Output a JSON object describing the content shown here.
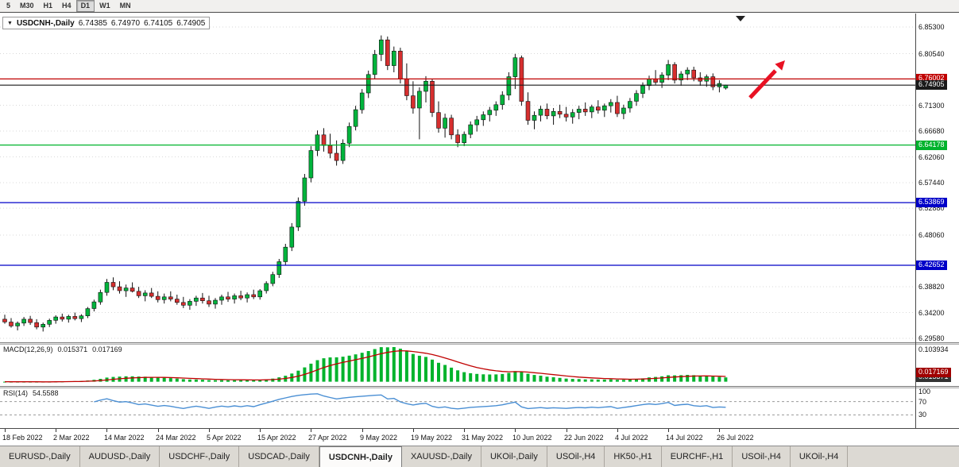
{
  "toolbar": {
    "timeframes": [
      {
        "label": "5",
        "active": false
      },
      {
        "label": "M30",
        "active": false
      },
      {
        "label": "H1",
        "active": false
      },
      {
        "label": "H4",
        "active": false
      },
      {
        "label": "D1",
        "active": true
      },
      {
        "label": "W1",
        "active": false
      },
      {
        "label": "MN",
        "active": false
      }
    ]
  },
  "chart": {
    "title": "USDCNH-,Daily",
    "ohlc": {
      "open": "6.74385",
      "high": "6.74970",
      "low": "6.74105",
      "close": "6.74905"
    },
    "scale": {
      "max": 6.8772,
      "min": 6.2887
    },
    "axis_labels": [
      "6.85300",
      "6.80540",
      "6.71300",
      "6.66680",
      "6.62060",
      "6.57440",
      "6.52880",
      "6.48060",
      "6.38820",
      "6.34200",
      "6.29580"
    ],
    "hlines": [
      {
        "label": "6.76002",
        "value": 6.76002,
        "color": "#c00000"
      },
      {
        "label": "6.74905",
        "value": 6.74905,
        "color": "#1a1a1a"
      },
      {
        "label": "6.64178",
        "value": 6.64178,
        "color": "#00b32c"
      },
      {
        "label": "6.53869",
        "value": 6.53869,
        "color": "#0000c8"
      },
      {
        "label": "6.42652",
        "value": 6.42652,
        "color": "#0000c8"
      }
    ],
    "colors": {
      "up": "#00b43c",
      "down": "#d62f2f",
      "outline": "#111111",
      "arrow": "#e81123"
    },
    "dates": [
      {
        "label": "18 Feb 2022",
        "bar": 0
      },
      {
        "label": "2 Mar 2022",
        "bar": 8
      },
      {
        "label": "14 Mar 2022",
        "bar": 16
      },
      {
        "label": "24 Mar 2022",
        "bar": 24
      },
      {
        "label": "5 Apr 2022",
        "bar": 32
      },
      {
        "label": "15 Apr 2022",
        "bar": 40
      },
      {
        "label": "27 Apr 2022",
        "bar": 48
      },
      {
        "label": "9 May 2022",
        "bar": 56
      },
      {
        "label": "19 May 2022",
        "bar": 64
      },
      {
        "label": "31 May 2022",
        "bar": 72
      },
      {
        "label": "10 Jun 2022",
        "bar": 80
      },
      {
        "label": "22 Jun 2022",
        "bar": 88
      },
      {
        "label": "4 Jul 2022",
        "bar": 96
      },
      {
        "label": "14 Jul 2022",
        "bar": 104
      },
      {
        "label": "26 Jul 2022",
        "bar": 112
      }
    ],
    "candles": [
      [
        6.33,
        6.338,
        6.322,
        6.325
      ],
      [
        6.325,
        6.332,
        6.315,
        6.318
      ],
      [
        6.318,
        6.326,
        6.31,
        6.323
      ],
      [
        6.323,
        6.334,
        6.318,
        6.33
      ],
      [
        6.33,
        6.336,
        6.32,
        6.324
      ],
      [
        6.324,
        6.33,
        6.312,
        6.316
      ],
      [
        6.316,
        6.324,
        6.308,
        6.321
      ],
      [
        6.321,
        6.331,
        6.316,
        6.328
      ],
      [
        6.328,
        6.337,
        6.322,
        6.334
      ],
      [
        6.334,
        6.34,
        6.326,
        6.33
      ],
      [
        6.33,
        6.338,
        6.324,
        6.335
      ],
      [
        6.335,
        6.342,
        6.328,
        6.331
      ],
      [
        6.331,
        6.339,
        6.325,
        6.336
      ],
      [
        6.336,
        6.352,
        6.332,
        6.349
      ],
      [
        6.349,
        6.365,
        6.344,
        6.361
      ],
      [
        6.361,
        6.383,
        6.356,
        6.378
      ],
      [
        6.378,
        6.402,
        6.372,
        6.396
      ],
      [
        6.396,
        6.405,
        6.382,
        6.388
      ],
      [
        6.388,
        6.398,
        6.376,
        6.381
      ],
      [
        6.381,
        6.392,
        6.37,
        6.386
      ],
      [
        6.386,
        6.396,
        6.378,
        6.38
      ],
      [
        6.38,
        6.388,
        6.368,
        6.372
      ],
      [
        6.372,
        6.382,
        6.362,
        6.377
      ],
      [
        6.377,
        6.386,
        6.368,
        6.371
      ],
      [
        6.371,
        6.38,
        6.36,
        6.365
      ],
      [
        6.365,
        6.376,
        6.358,
        6.37
      ],
      [
        6.37,
        6.38,
        6.362,
        6.366
      ],
      [
        6.366,
        6.374,
        6.356,
        6.36
      ],
      [
        6.36,
        6.37,
        6.35,
        6.355
      ],
      [
        6.355,
        6.366,
        6.347,
        6.362
      ],
      [
        6.362,
        6.372,
        6.354,
        6.368
      ],
      [
        6.368,
        6.377,
        6.358,
        6.363
      ],
      [
        6.363,
        6.372,
        6.352,
        6.357
      ],
      [
        6.357,
        6.368,
        6.349,
        6.364
      ],
      [
        6.364,
        6.374,
        6.356,
        6.37
      ],
      [
        6.37,
        6.379,
        6.361,
        6.366
      ],
      [
        6.366,
        6.376,
        6.358,
        6.372
      ],
      [
        6.372,
        6.381,
        6.364,
        6.368
      ],
      [
        6.368,
        6.378,
        6.36,
        6.374
      ],
      [
        6.374,
        6.383,
        6.366,
        6.37
      ],
      [
        6.37,
        6.384,
        6.365,
        6.381
      ],
      [
        6.381,
        6.398,
        6.376,
        6.394
      ],
      [
        6.394,
        6.415,
        6.389,
        6.41
      ],
      [
        6.41,
        6.438,
        6.404,
        6.433
      ],
      [
        6.433,
        6.465,
        6.427,
        6.459
      ],
      [
        6.459,
        6.502,
        6.452,
        6.495
      ],
      [
        6.495,
        6.548,
        6.488,
        6.541
      ],
      [
        6.541,
        6.59,
        6.533,
        6.583
      ],
      [
        6.583,
        6.64,
        6.575,
        6.632
      ],
      [
        6.632,
        6.668,
        6.622,
        6.66
      ],
      [
        6.66,
        6.672,
        6.63,
        6.641
      ],
      [
        6.641,
        6.662,
        6.618,
        6.627
      ],
      [
        6.627,
        6.65,
        6.605,
        6.614
      ],
      [
        6.614,
        6.652,
        6.608,
        6.645
      ],
      [
        6.645,
        6.682,
        6.638,
        6.675
      ],
      [
        6.675,
        6.712,
        6.668,
        6.705
      ],
      [
        6.705,
        6.742,
        6.698,
        6.735
      ],
      [
        6.735,
        6.775,
        6.726,
        6.768
      ],
      [
        6.768,
        6.812,
        6.76,
        6.804
      ],
      [
        6.804,
        6.838,
        6.792,
        6.83
      ],
      [
        6.83,
        6.836,
        6.776,
        6.784
      ],
      [
        6.784,
        6.818,
        6.772,
        6.81
      ],
      [
        6.81,
        6.816,
        6.752,
        6.76
      ],
      [
        6.76,
        6.788,
        6.722,
        6.73
      ],
      [
        6.73,
        6.756,
        6.698,
        6.708
      ],
      [
        6.708,
        6.745,
        6.652,
        6.738
      ],
      [
        6.738,
        6.765,
        6.718,
        6.756
      ],
      [
        6.756,
        6.76,
        6.692,
        6.7
      ],
      [
        6.7,
        6.72,
        6.664,
        6.672
      ],
      [
        6.672,
        6.698,
        6.655,
        6.69
      ],
      [
        6.69,
        6.696,
        6.652,
        6.66
      ],
      [
        6.66,
        6.67,
        6.638,
        6.646
      ],
      [
        6.646,
        6.666,
        6.64,
        6.661
      ],
      [
        6.661,
        6.684,
        6.654,
        6.678
      ],
      [
        6.678,
        6.694,
        6.666,
        6.687
      ],
      [
        6.687,
        6.702,
        6.676,
        6.696
      ],
      [
        6.696,
        6.71,
        6.684,
        6.704
      ],
      [
        6.704,
        6.72,
        6.694,
        6.714
      ],
      [
        6.714,
        6.738,
        6.705,
        6.731
      ],
      [
        6.731,
        6.772,
        6.722,
        6.764
      ],
      [
        6.764,
        6.805,
        6.742,
        6.798
      ],
      [
        6.798,
        6.802,
        6.712,
        6.72
      ],
      [
        6.72,
        6.736,
        6.678,
        6.686
      ],
      [
        6.686,
        6.702,
        6.67,
        6.695
      ],
      [
        6.695,
        6.712,
        6.684,
        6.706
      ],
      [
        6.706,
        6.716,
        6.688,
        6.694
      ],
      [
        6.694,
        6.708,
        6.678,
        6.702
      ],
      [
        6.702,
        6.714,
        6.69,
        6.697
      ],
      [
        6.697,
        6.71,
        6.684,
        6.692
      ],
      [
        6.692,
        6.706,
        6.68,
        6.7
      ],
      [
        6.7,
        6.712,
        6.688,
        6.706
      ],
      [
        6.706,
        6.718,
        6.694,
        6.701
      ],
      [
        6.701,
        6.714,
        6.69,
        6.71
      ],
      [
        6.71,
        6.722,
        6.698,
        6.704
      ],
      [
        6.704,
        6.716,
        6.692,
        6.712
      ],
      [
        6.712,
        6.724,
        6.7,
        6.718
      ],
      [
        6.718,
        6.73,
        6.692,
        6.698
      ],
      [
        6.698,
        6.714,
        6.688,
        6.708
      ],
      [
        6.708,
        6.726,
        6.7,
        6.72
      ],
      [
        6.72,
        6.74,
        6.712,
        6.734
      ],
      [
        6.734,
        6.754,
        6.726,
        6.748
      ],
      [
        6.748,
        6.766,
        6.74,
        6.76
      ],
      [
        6.76,
        6.776,
        6.75,
        6.754
      ],
      [
        6.754,
        6.772,
        6.744,
        6.767
      ],
      [
        6.767,
        6.794,
        6.758,
        6.786
      ],
      [
        6.786,
        6.79,
        6.752,
        6.758
      ],
      [
        6.758,
        6.774,
        6.748,
        6.769
      ],
      [
        6.769,
        6.781,
        6.758,
        6.776
      ],
      [
        6.776,
        6.782,
        6.756,
        6.762
      ],
      [
        6.762,
        6.772,
        6.748,
        6.756
      ],
      [
        6.756,
        6.768,
        6.746,
        6.764
      ],
      [
        6.764,
        6.77,
        6.74,
        6.746
      ],
      [
        6.746,
        6.758,
        6.736,
        6.752
      ],
      [
        6.74385,
        6.7497,
        6.74105,
        6.74905
      ]
    ]
  },
  "macd": {
    "label": "MACD(12,26,9)",
    "value_main": "0.015371",
    "value_signal": "0.017169",
    "axis_top": "0.103934",
    "colors": {
      "hist": "#00b32c",
      "signal": "#c00000"
    }
  },
  "rsi": {
    "label": "RSI(14)",
    "value": "54.5588",
    "color": "#4a8fd4",
    "levels": [
      {
        "text": "100",
        "value": 100,
        "dashed": false
      },
      {
        "text": "70",
        "value": 70,
        "dashed": true
      },
      {
        "text": "30",
        "value": 30,
        "dashed": true
      }
    ]
  },
  "tabs": [
    {
      "label": "EURUSD-,Daily"
    },
    {
      "label": "AUDUSD-,Daily"
    },
    {
      "label": "USDCHF-,Daily"
    },
    {
      "label": "USDCAD-,Daily"
    },
    {
      "label": "USDCNH-,Daily",
      "active": true
    },
    {
      "label": "XAUUSD-,Daily"
    },
    {
      "label": "UKOil-,Daily"
    },
    {
      "label": "USOil-,H4"
    },
    {
      "label": "HK50-,H1"
    },
    {
      "label": "EURCHF-,H1"
    },
    {
      "label": "USOil-,H4"
    },
    {
      "label": "UKOil-,H4"
    }
  ]
}
